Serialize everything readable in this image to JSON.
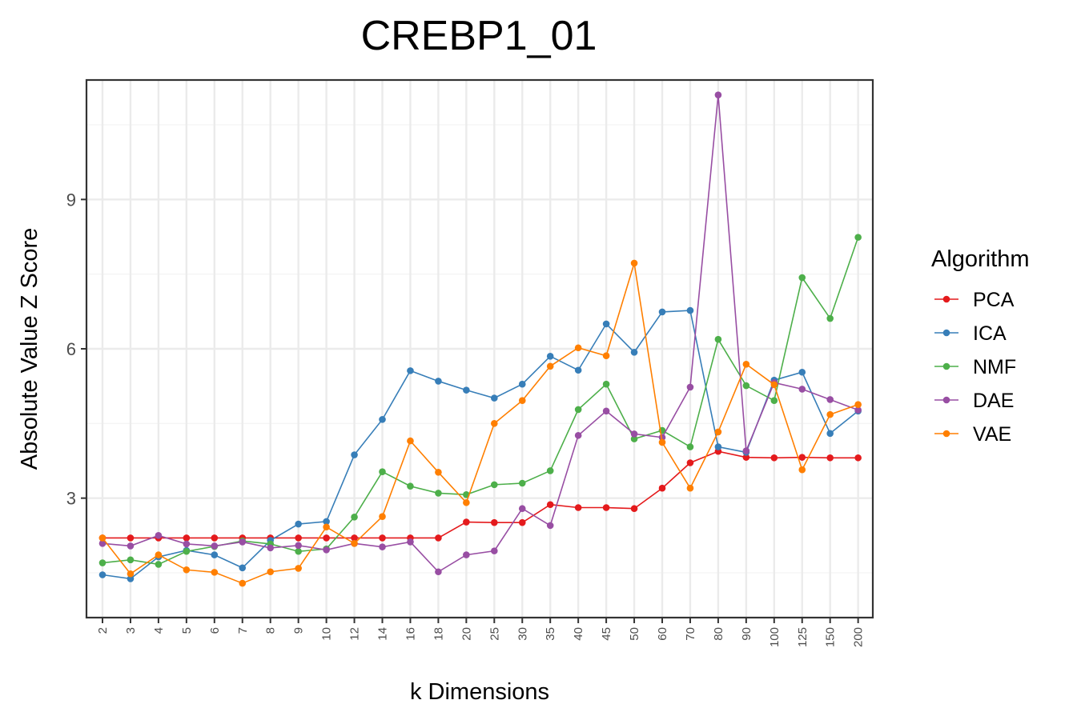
{
  "chart_data": {
    "type": "line",
    "title": "CREBP1_01",
    "xlabel": "k Dimensions",
    "ylabel": "Absolute Value Z Score",
    "categories": [
      "2",
      "3",
      "4",
      "5",
      "6",
      "7",
      "8",
      "9",
      "10",
      "12",
      "14",
      "16",
      "18",
      "20",
      "25",
      "30",
      "35",
      "40",
      "45",
      "50",
      "60",
      "70",
      "80",
      "90",
      "100",
      "125",
      "150",
      "200"
    ],
    "ylim": [
      0.6,
      11.4
    ],
    "yticks": [
      3,
      6,
      9
    ],
    "grid": true,
    "legend": {
      "title": "Algorithm",
      "position": "right"
    },
    "series": [
      {
        "name": "PCA",
        "color": "#e41a1c",
        "values": [
          2.2,
          2.2,
          2.2,
          2.2,
          2.2,
          2.2,
          2.2,
          2.2,
          2.2,
          2.2,
          2.2,
          2.2,
          2.2,
          2.52,
          2.51,
          2.51,
          2.87,
          2.81,
          2.81,
          2.79,
          3.2,
          3.71,
          3.94,
          3.82,
          3.81,
          3.82,
          3.81,
          3.81
        ]
      },
      {
        "name": "ICA",
        "color": "#377eb8",
        "values": [
          1.46,
          1.38,
          1.82,
          1.95,
          1.86,
          1.6,
          2.15,
          2.48,
          2.53,
          3.87,
          4.58,
          5.56,
          5.35,
          5.17,
          5.01,
          5.29,
          5.85,
          5.57,
          6.5,
          5.93,
          6.74,
          6.77,
          4.03,
          3.92,
          5.37,
          5.53,
          4.3,
          4.75
        ]
      },
      {
        "name": "NMF",
        "color": "#4daf4a",
        "values": [
          1.7,
          1.76,
          1.67,
          1.93,
          2.03,
          2.14,
          2.08,
          1.93,
          1.98,
          2.62,
          3.53,
          3.24,
          3.1,
          3.07,
          3.27,
          3.3,
          3.55,
          4.78,
          5.29,
          4.19,
          4.36,
          4.03,
          6.19,
          5.26,
          4.96,
          7.43,
          6.61,
          8.24
        ]
      },
      {
        "name": "DAE",
        "color": "#984ea3",
        "values": [
          2.09,
          2.04,
          2.25,
          2.08,
          2.04,
          2.12,
          2.0,
          2.05,
          1.96,
          2.09,
          2.02,
          2.12,
          1.52,
          1.86,
          1.94,
          2.79,
          2.45,
          4.26,
          4.75,
          4.29,
          4.22,
          5.23,
          11.1,
          3.95,
          5.32,
          5.19,
          4.98,
          4.77
        ]
      },
      {
        "name": "VAE",
        "color": "#ff7f00",
        "values": [
          2.2,
          1.48,
          1.86,
          1.56,
          1.51,
          1.29,
          1.52,
          1.59,
          2.42,
          2.09,
          2.63,
          4.15,
          3.52,
          2.91,
          4.5,
          4.96,
          5.65,
          6.02,
          5.86,
          7.72,
          4.12,
          3.2,
          4.33,
          5.69,
          5.28,
          3.57,
          4.68,
          4.88
        ]
      }
    ]
  }
}
